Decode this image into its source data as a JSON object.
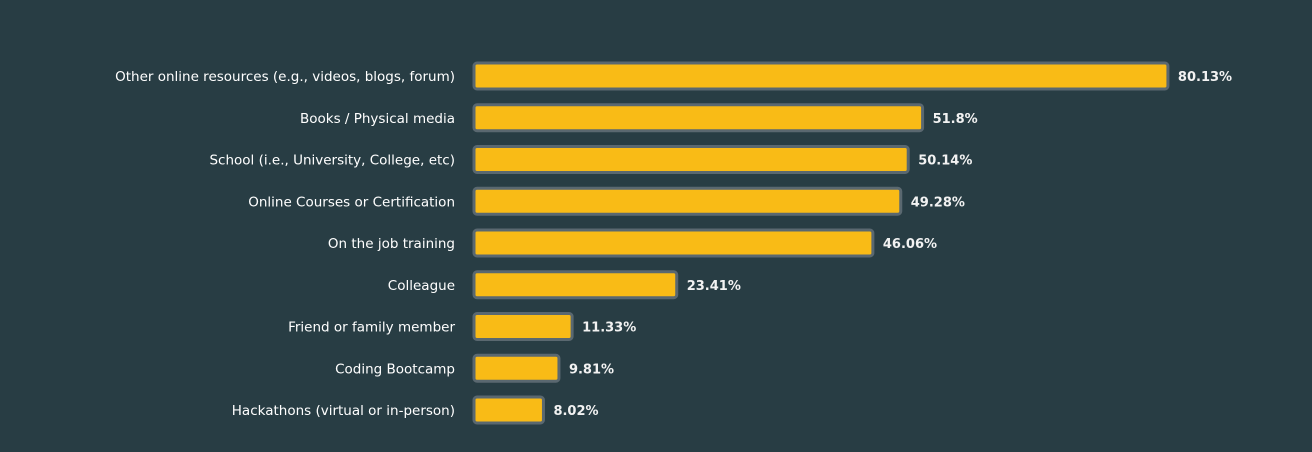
{
  "chart_data": {
    "type": "bar",
    "orientation": "horizontal",
    "categories": [
      "Other online resources (e.g., videos, blogs, forum)",
      "Books / Physical media",
      "School (i.e., University, College, etc)",
      "Online Courses or Certification",
      "On the job training",
      "Colleague",
      "Friend or family member",
      "Coding Bootcamp",
      "Hackathons (virtual or in-person)"
    ],
    "values": [
      80.13,
      51.8,
      50.14,
      49.28,
      46.06,
      23.41,
      11.33,
      9.81,
      8.02
    ],
    "data_labels": [
      "80.13%",
      "51.8%",
      "50.14%",
      "49.28%",
      "46.06%",
      "23.41%",
      "11.33%",
      "9.81%",
      "8.02%"
    ],
    "unit": "%",
    "grid": false,
    "legend": "none",
    "colors": {
      "background": "#283d44",
      "bar": "#f9bb16",
      "bar_border": "#5a6870",
      "text": "#ffffff"
    }
  }
}
